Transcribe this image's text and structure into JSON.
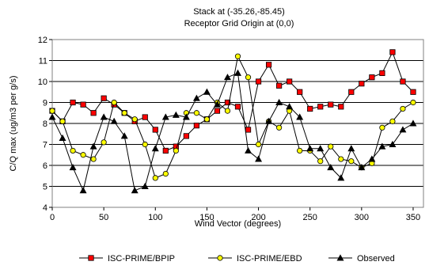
{
  "chart_data": {
    "type": "line",
    "title": "Stack at (-35.26,-85.45)",
    "subtitle": "Receptor Grid Origin at (0,0)",
    "xlabel": "Wind Vector (degrees)",
    "ylabel": "C/Q max (ug/m3 per g/s)",
    "xlim": [
      0,
      360
    ],
    "ylim": [
      4,
      12
    ],
    "xticks": [
      0,
      50,
      100,
      150,
      200,
      250,
      300,
      350
    ],
    "yticks": [
      4,
      5,
      6,
      7,
      8,
      9,
      10,
      11,
      12
    ],
    "xtick_labels": [
      "0",
      "50",
      "100",
      "150",
      "200",
      "250",
      "300",
      "350"
    ],
    "ytick_labels": [
      "4",
      "5",
      "6",
      "7",
      "8",
      "9",
      "10",
      "11",
      "12"
    ],
    "grid": "horizontal",
    "legend_position": "bottom",
    "x": [
      0,
      10,
      20,
      30,
      40,
      50,
      60,
      70,
      80,
      90,
      100,
      110,
      120,
      130,
      140,
      150,
      160,
      170,
      180,
      190,
      200,
      210,
      220,
      230,
      240,
      250,
      260,
      270,
      280,
      290,
      300,
      310,
      320,
      330,
      340,
      350
    ],
    "series": [
      {
        "name": "ISC-PRIME/BPIP",
        "marker": "square",
        "color": "#ff0000",
        "values": [
          8.6,
          8.1,
          9.0,
          8.9,
          8.5,
          9.2,
          8.9,
          8.5,
          8.1,
          8.3,
          7.7,
          6.7,
          6.9,
          7.4,
          7.9,
          8.2,
          8.6,
          9.0,
          8.8,
          7.7,
          10.0,
          10.8,
          9.8,
          10.0,
          9.5,
          8.7,
          8.8,
          8.9,
          8.8,
          9.5,
          9.9,
          10.2,
          10.4,
          11.4,
          10.0,
          9.5
        ]
      },
      {
        "name": "ISC-PRIME/EBD",
        "marker": "circle",
        "color": "#ffff00",
        "values": [
          8.6,
          8.1,
          6.7,
          6.5,
          6.3,
          7.1,
          9.0,
          8.5,
          8.2,
          7.0,
          5.4,
          5.6,
          6.7,
          8.5,
          8.5,
          8.2,
          9.0,
          8.6,
          11.2,
          10.2,
          7.0,
          8.1,
          7.8,
          8.6,
          6.7,
          6.7,
          6.2,
          6.9,
          6.3,
          6.2,
          5.9,
          6.1,
          7.8,
          8.1,
          8.7,
          9.0
        ]
      },
      {
        "name": "Observed",
        "marker": "triangle",
        "color": "#000000",
        "values": [
          8.3,
          7.3,
          5.9,
          4.8,
          6.9,
          8.3,
          8.1,
          7.4,
          4.8,
          5.0,
          6.8,
          8.3,
          8.4,
          8.3,
          9.2,
          9.5,
          8.9,
          10.2,
          10.4,
          6.7,
          6.3,
          8.1,
          9.0,
          8.8,
          8.3,
          6.8,
          6.8,
          5.9,
          5.4,
          6.8,
          5.9,
          6.3,
          6.9,
          7.0,
          7.7,
          8.0
        ]
      }
    ]
  }
}
